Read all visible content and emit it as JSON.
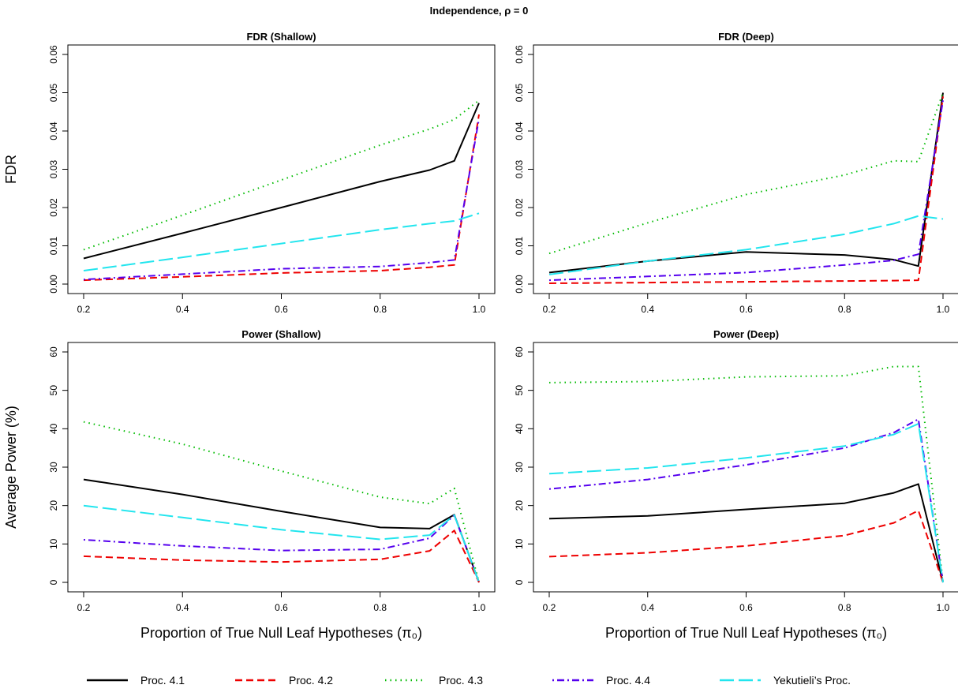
{
  "title": "Independence, ρ = 0",
  "legend": {
    "position": "bottom",
    "items": [
      {
        "label": "Proc. 4.1",
        "color": "#000000",
        "dash": "solid"
      },
      {
        "label": "Proc. 4.2",
        "color": "#ee0000",
        "dash": "dashed"
      },
      {
        "label": "Proc. 4.3",
        "color": "#00bb00",
        "dash": "dotted"
      },
      {
        "label": "Proc. 4.4",
        "color": "#5500ee",
        "dash": "dotdash"
      },
      {
        "label": "Yekutieli’s Proc.",
        "color": "#22e5ee",
        "dash": "longdash"
      }
    ]
  },
  "chart_data": [
    {
      "type": "line",
      "title": "FDR (Shallow)",
      "xlabel": "",
      "ylabel": "FDR",
      "xlim": [
        0.2,
        1.0
      ],
      "ylim": [
        0,
        0.06
      ],
      "xticks": [
        "0.2",
        "0.4",
        "0.6",
        "0.8",
        "1.0"
      ],
      "yticks": [
        "0.00",
        "0.01",
        "0.02",
        "0.03",
        "0.04",
        "0.05",
        "0.06"
      ],
      "x": [
        0.2,
        0.4,
        0.6,
        0.8,
        0.9,
        0.95,
        1.0
      ],
      "series": [
        {
          "values": [
            0.0067,
            0.0133,
            0.02,
            0.0268,
            0.0298,
            0.0322,
            0.0473
          ]
        },
        {
          "values": [
            0.001,
            0.0019,
            0.0029,
            0.0035,
            0.0044,
            0.005,
            0.0443
          ]
        },
        {
          "values": [
            0.009,
            0.018,
            0.0272,
            0.0363,
            0.0405,
            0.043,
            0.048
          ]
        },
        {
          "values": [
            0.0012,
            0.0026,
            0.004,
            0.0046,
            0.0056,
            0.0063,
            0.0432
          ]
        },
        {
          "values": [
            0.0035,
            0.007,
            0.0106,
            0.0142,
            0.0158,
            0.0165,
            0.0185
          ]
        }
      ]
    },
    {
      "type": "line",
      "title": "FDR (Deep)",
      "xlabel": "",
      "ylabel": "",
      "xlim": [
        0.2,
        1.0
      ],
      "ylim": [
        0,
        0.06
      ],
      "xticks": [
        "0.2",
        "0.4",
        "0.6",
        "0.8",
        "1.0"
      ],
      "yticks": [
        "0.00",
        "0.01",
        "0.02",
        "0.03",
        "0.04",
        "0.05",
        "0.06"
      ],
      "x": [
        0.2,
        0.4,
        0.6,
        0.8,
        0.9,
        0.95,
        1.0
      ],
      "series": [
        {
          "values": [
            0.003,
            0.006,
            0.0084,
            0.0076,
            0.0064,
            0.0047,
            0.05
          ]
        },
        {
          "values": [
            0.0002,
            0.0004,
            0.0006,
            0.0008,
            0.0009,
            0.001,
            0.049
          ]
        },
        {
          "values": [
            0.008,
            0.016,
            0.0234,
            0.0285,
            0.0322,
            0.032,
            0.05
          ]
        },
        {
          "values": [
            0.001,
            0.002,
            0.003,
            0.005,
            0.0062,
            0.0078,
            0.048
          ]
        },
        {
          "values": [
            0.0025,
            0.006,
            0.009,
            0.013,
            0.0158,
            0.0178,
            0.017
          ]
        }
      ]
    },
    {
      "type": "line",
      "title": "Power (Shallow)",
      "xlabel": "Proportion of True Null Leaf Hypotheses (π₀)",
      "ylabel": "Average Power (%)",
      "xlim": [
        0.2,
        1.0
      ],
      "ylim": [
        0,
        60
      ],
      "xticks": [
        "0.2",
        "0.4",
        "0.6",
        "0.8",
        "1.0"
      ],
      "yticks": [
        "0",
        "10",
        "20",
        "30",
        "40",
        "50",
        "60"
      ],
      "x": [
        0.2,
        0.4,
        0.6,
        0.8,
        0.9,
        0.95,
        1.0
      ],
      "series": [
        {
          "values": [
            26.8,
            22.9,
            18.5,
            14.3,
            14.0,
            17.6,
            0.0
          ]
        },
        {
          "values": [
            6.8,
            5.8,
            5.3,
            6.0,
            8.2,
            13.5,
            0.0
          ]
        },
        {
          "values": [
            41.8,
            36.0,
            29.0,
            22.2,
            20.5,
            24.5,
            0.0
          ]
        },
        {
          "values": [
            11.1,
            9.5,
            8.3,
            8.6,
            11.5,
            17.5,
            0.0
          ]
        },
        {
          "values": [
            20.0,
            16.9,
            13.7,
            11.2,
            12.3,
            17.5,
            0.0
          ]
        }
      ]
    },
    {
      "type": "line",
      "title": "Power (Deep)",
      "xlabel": "Proportion of True Null Leaf Hypotheses (π₀)",
      "ylabel": "",
      "xlim": [
        0.2,
        1.0
      ],
      "ylim": [
        0,
        60
      ],
      "xticks": [
        "0.2",
        "0.4",
        "0.6",
        "0.8",
        "1.0"
      ],
      "yticks": [
        "0",
        "10",
        "20",
        "30",
        "40",
        "50",
        "60"
      ],
      "x": [
        0.2,
        0.4,
        0.6,
        0.8,
        0.9,
        0.95,
        1.0
      ],
      "series": [
        {
          "values": [
            16.6,
            17.3,
            19.0,
            20.6,
            23.3,
            25.6,
            0.0
          ]
        },
        {
          "values": [
            6.7,
            7.7,
            9.5,
            12.2,
            15.5,
            18.7,
            0.0
          ]
        },
        {
          "values": [
            52.0,
            52.3,
            53.5,
            53.8,
            56.2,
            56.2,
            0.0
          ]
        },
        {
          "values": [
            24.3,
            26.8,
            30.6,
            35.0,
            39.0,
            42.5,
            0.0
          ]
        },
        {
          "values": [
            28.3,
            29.8,
            32.4,
            35.5,
            38.5,
            41.3,
            0.0
          ]
        }
      ]
    }
  ]
}
